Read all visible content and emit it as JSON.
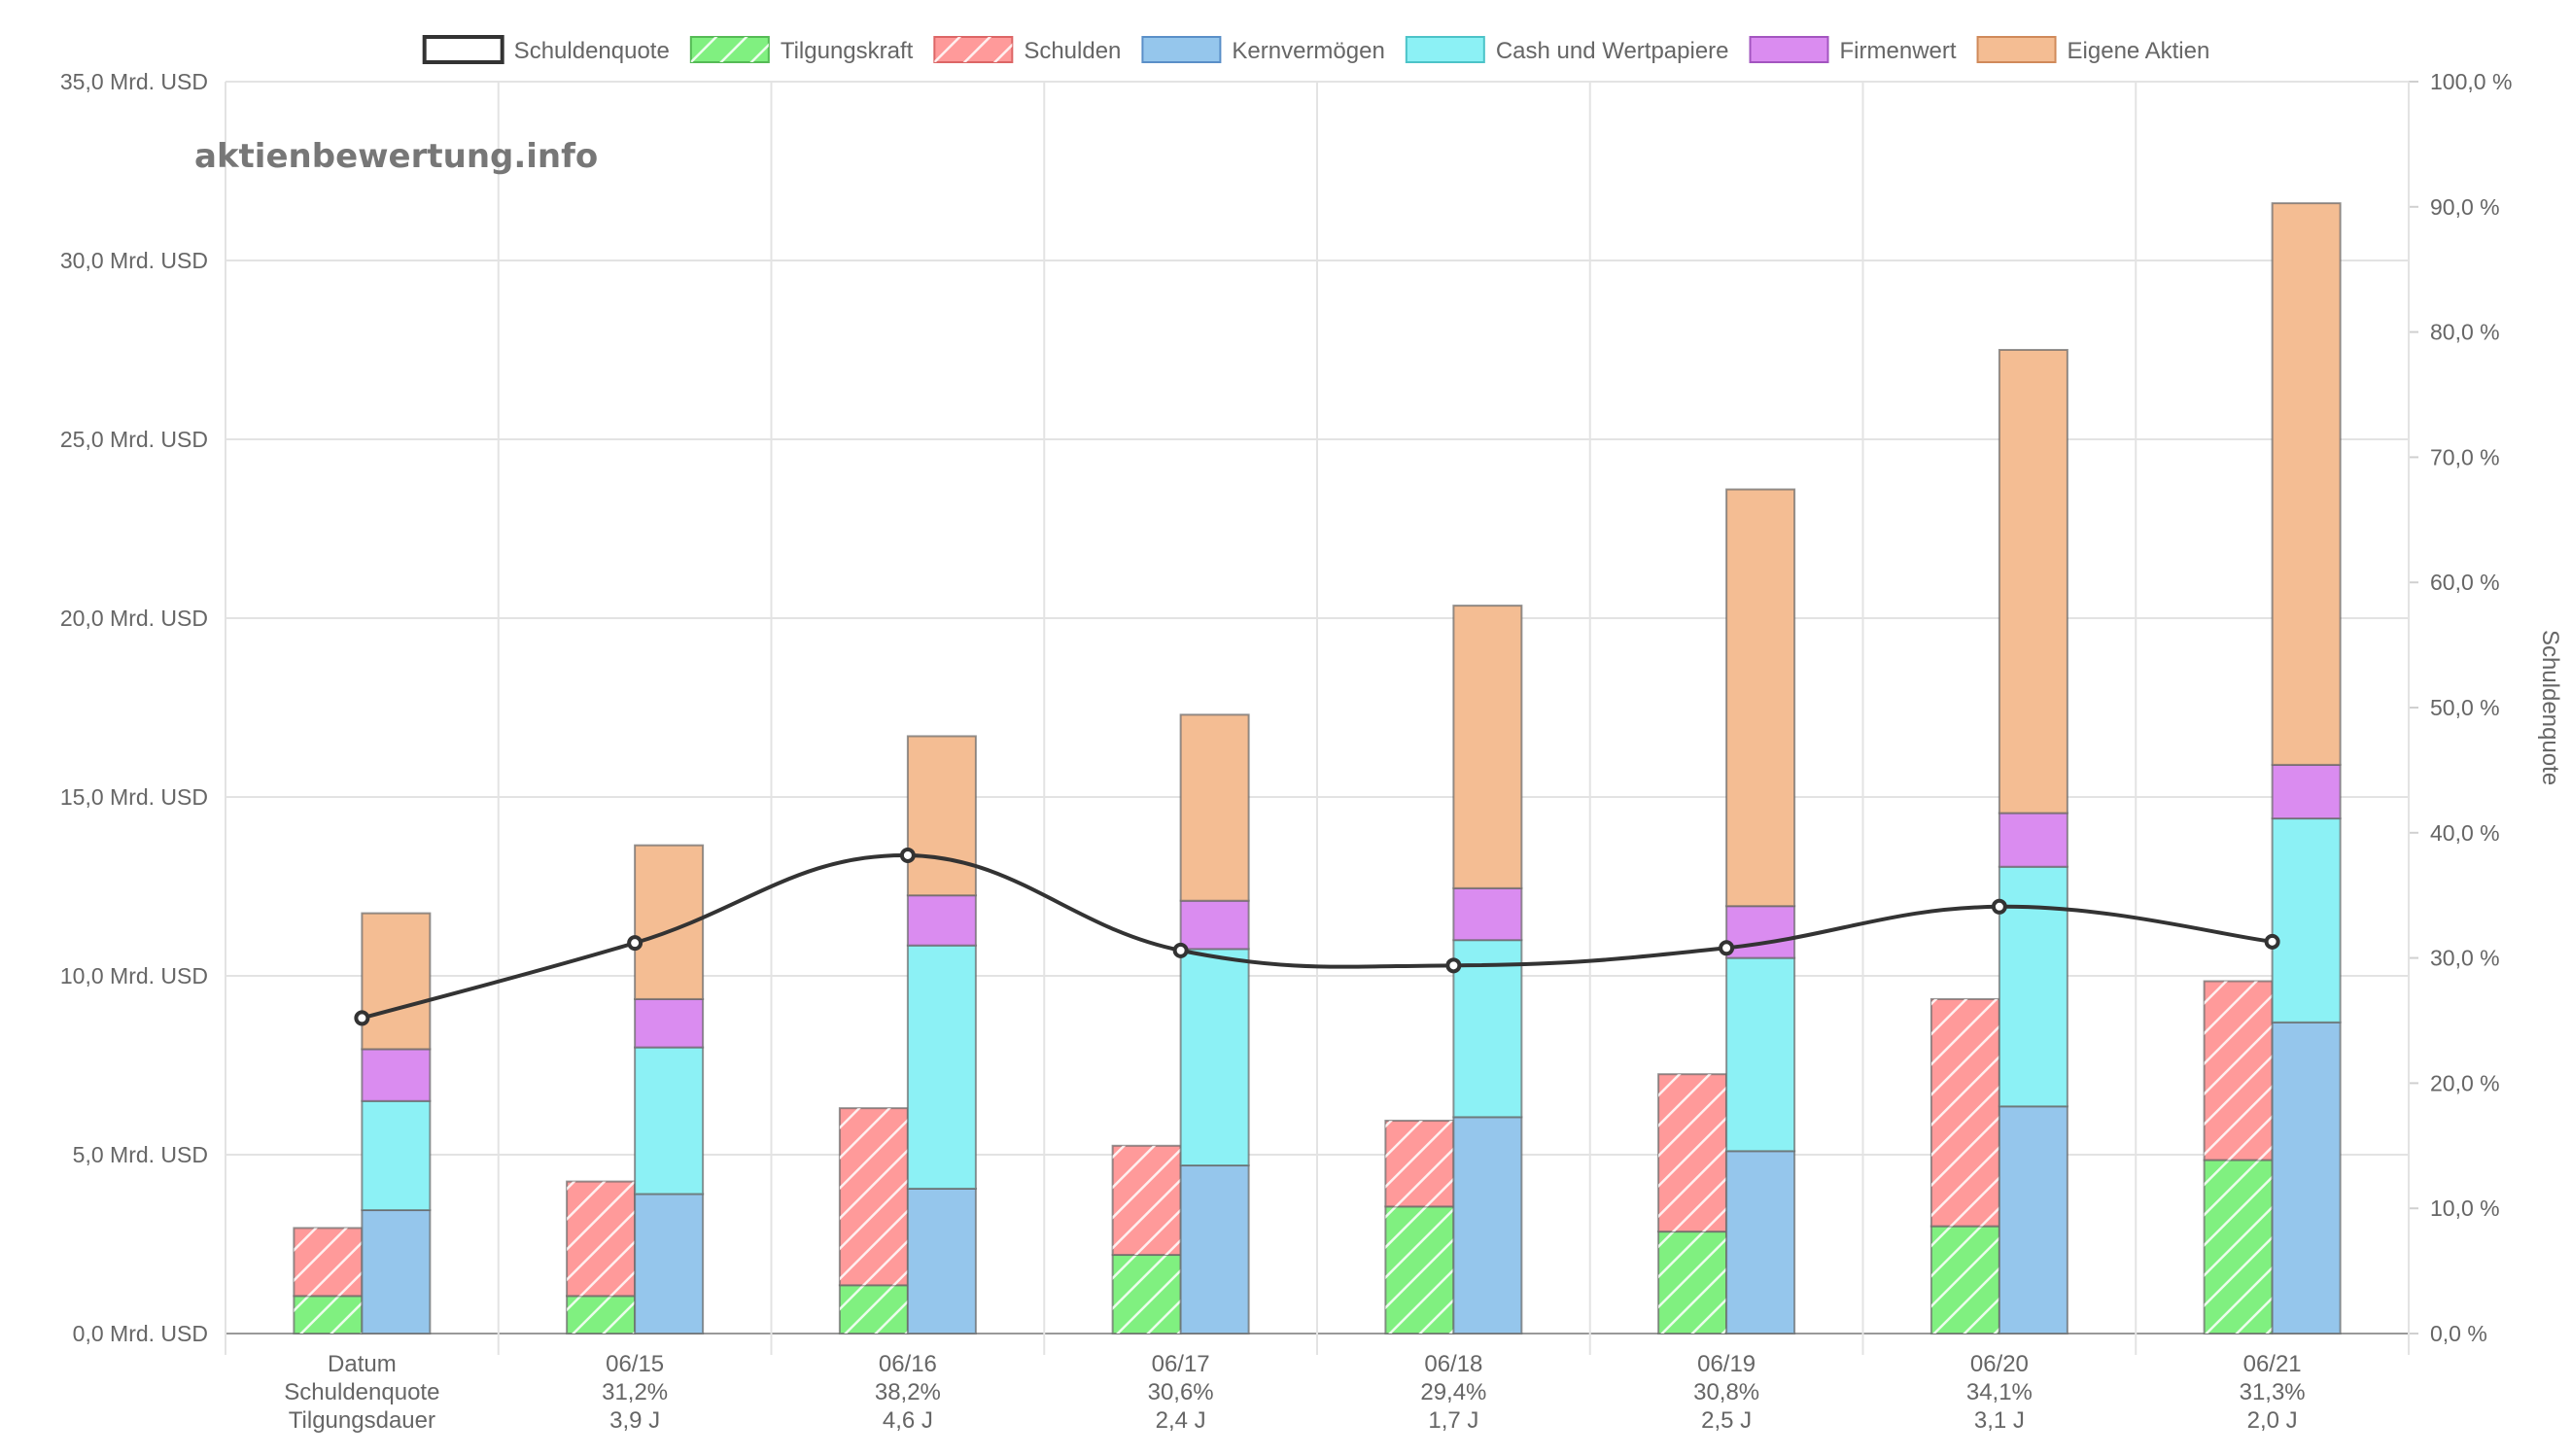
{
  "watermark": "aktienbewertung.info",
  "chart_data": {
    "type": "bar",
    "categories": [
      "Datum",
      "06/15",
      "06/16",
      "06/17",
      "06/18",
      "06/19",
      "06/20",
      "06/21"
    ],
    "category_sublabels": [
      [
        "Schuldenquote",
        "31,2%",
        "38,2%",
        "30,6%",
        "29,4%",
        "30,8%",
        "34,1%",
        "31,3%"
      ],
      [
        "Tilgungsdauer",
        "3,9 J",
        "4,6 J",
        "2,4 J",
        "1,7 J",
        "2,5 J",
        "3,1 J",
        "2,0 J"
      ]
    ],
    "y_left": {
      "min": 0,
      "max": 35,
      "step": 5,
      "unit": "Mrd. USD",
      "tick_labels": [
        "0,0 Mrd. USD",
        "5,0 Mrd. USD",
        "10,0 Mrd. USD",
        "15,0 Mrd. USD",
        "20,0 Mrd. USD",
        "25,0 Mrd. USD",
        "30,0 Mrd. USD",
        "35,0 Mrd. USD"
      ]
    },
    "y_right": {
      "min": 0,
      "max": 100,
      "step": 10,
      "title": "Schuldenquote",
      "tick_labels": [
        "0,0 %",
        "10,0 %",
        "20,0 %",
        "30,0 %",
        "40,0 %",
        "50,0 %",
        "60,0 %",
        "70,0 %",
        "80,0 %",
        "90,0 %",
        "100,0 %"
      ]
    },
    "legend": [
      {
        "name": "Schuldenquote",
        "color": "#ffffff",
        "border": "#333333",
        "pattern": false
      },
      {
        "name": "Tilgungskraft",
        "color": "#80f080",
        "border": "#55bb55",
        "pattern": true
      },
      {
        "name": "Schulden",
        "color": "#ff9a9a",
        "border": "#dd6666",
        "pattern": true
      },
      {
        "name": "Kernvermögen",
        "color": "#95c6ec",
        "border": "#5a8fc8",
        "pattern": false
      },
      {
        "name": "Cash und Wertpapiere",
        "color": "#8cf1f5",
        "border": "#4cc3c8",
        "pattern": false
      },
      {
        "name": "Firmenwert",
        "color": "#da8cf0",
        "border": "#a355c0",
        "pattern": false
      },
      {
        "name": "Eigene Aktien",
        "color": "#f4bd93",
        "border": "#d08a5a",
        "pattern": false
      }
    ],
    "stack_left": {
      "Tilgungskraft": [
        1.05,
        1.05,
        1.35,
        2.2,
        3.55,
        2.85,
        3.0,
        4.85
      ],
      "Schulden": [
        1.9,
        3.2,
        4.95,
        3.05,
        2.4,
        4.4,
        6.35,
        5.0
      ]
    },
    "stack_right": {
      "Kernvermögen": [
        3.45,
        3.9,
        4.05,
        4.7,
        6.05,
        5.1,
        6.35,
        8.7
      ],
      "Cash und Wertpapiere": [
        3.05,
        4.1,
        6.8,
        6.05,
        4.95,
        5.4,
        6.7,
        5.7
      ],
      "Firmenwert": [
        1.45,
        1.35,
        1.4,
        1.35,
        1.45,
        1.45,
        1.5,
        1.5
      ],
      "Eigene Aktien": [
        3.8,
        4.3,
        4.45,
        5.2,
        7.9,
        11.65,
        12.95,
        15.7
      ]
    },
    "line": {
      "name": "Schuldenquote",
      "axis": "right",
      "color": "#333333",
      "values": [
        25.2,
        31.2,
        38.2,
        30.6,
        29.4,
        30.8,
        34.1,
        31.3
      ]
    }
  }
}
